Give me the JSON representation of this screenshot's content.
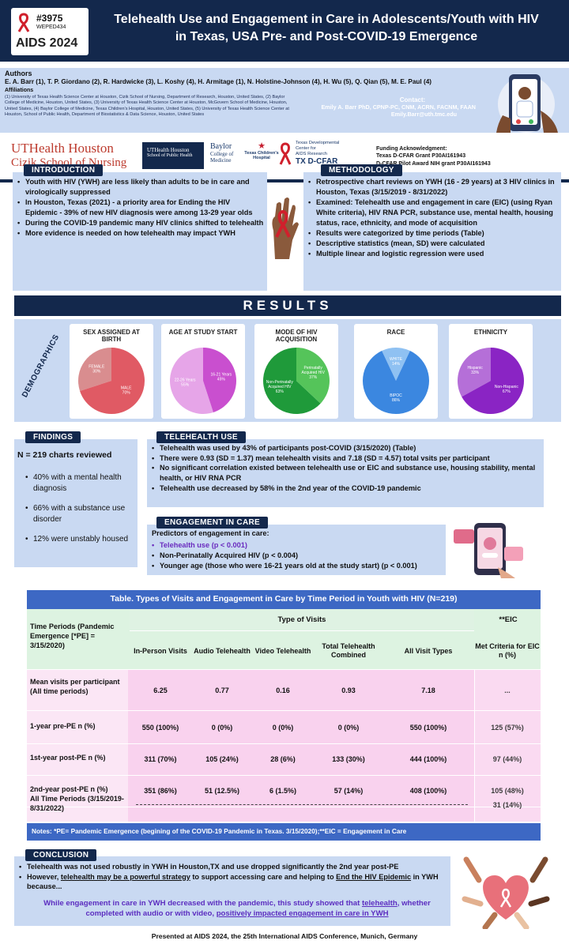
{
  "header": {
    "poster_id": "#3975",
    "poster_code": "WEPED434",
    "conference_logo": "AIDS 2024",
    "title_line1": "Telehealth Use and Engagement in Care in Adolescents/Youth with HIV",
    "title_line2": "in Texas, USA Pre- and Post-COVID-19 Emergence"
  },
  "authors": {
    "heading": "Authors",
    "names": "E. A. Barr (1), T. P. Giordano (2), R. Hardwicke (3), L. Koshy (4), H. Armitage (1), N. Holstine-Johnson (4), H. Wu (5), Q. Qian (5), M. E. Paul (4)",
    "affil_heading": "Affiliations",
    "affiliations": "(1) University of Texas Health Science Center at Houston, Cizik School of Nursing, Department of Research, Houston, United States, (2) Baylor College of Medicine, Houston, United States, (3) University of Texas Health Science Center at Houston, McGovern School of Medicine, Houston, United States, (4) Baylor College of Medicine, Texas Children's Hospital, Houston, United States, (5) University of Texas Health Science Center at Houston, School of Public Health, Department of Biostatistics & Data Science, Houston, United States"
  },
  "contact": {
    "label": "Contact:",
    "name": "Emily A. Barr PhD, CPNP-PC, CNM, ACRN, FACNM, FAAN",
    "email": "Emily.Barr@uth.tmc.edu"
  },
  "logos": {
    "uth_line1": "UTHealth Houston",
    "uth_line2": "Cizik School of Nursing",
    "sph_line1": "UTHealth Houston",
    "sph_line2": "School of Public Health",
    "baylor_line1": "Baylor",
    "baylor_line2": "College of",
    "baylor_line3": "Medicine",
    "tch_line1": "Texas Children's",
    "tch_line2": "Hospital",
    "dcfar_line1": "Texas Developmental",
    "dcfar_line2": "Center for",
    "dcfar_line3": "AIDS Research",
    "dcfar_line4": "TX D-CFAR"
  },
  "funding": {
    "label": "Funding Acknowledgment:",
    "line1": "Texas D-CFAR Grant P30AI161943",
    "line2": "D-CFAR Pilot Award NIH grant P30AI161943"
  },
  "introduction": {
    "label": "INTRODUCTION",
    "bullets": [
      "Youth with HIV (YWH) are less likely than adults to be in care and virologically suppressed",
      "In Houston, Texas (2021) - a priority area for Ending the HIV Epidemic - 39% of new HIV diagnosis were among 13-29 year olds",
      "During the COVID-19 pandemic many HIV clinics shifted to telehealth",
      "More evidence is needed on how telehealth may impact YWH"
    ]
  },
  "methodology": {
    "label": "METHODOLOGY",
    "bullets": [
      "Retrospective chart reviews on YWH (16 - 29 years) at 3 HIV clinics in Houston, Texas (3/15/2019 - 8/31/2022)",
      "Examined: Telehealth use and engagement in care (EIC) (using Ryan White criteria), HIV RNA PCR, substance use, mental health, housing status, race, ethnicity, and mode of acquisition",
      "Results were categorized by time periods (Table)",
      "Descriptive statistics (mean, SD) were calculated",
      "Multiple linear and logistic regression were used"
    ]
  },
  "results_title": "RESULTS",
  "demographics_label": "DEMOGRAPHICS",
  "chart_data": [
    {
      "type": "pie",
      "title": "SEX ASSIGNED AT BIRTH",
      "labels": [
        "FEMALE",
        "MALE"
      ],
      "values": [
        30,
        70
      ],
      "label_text": [
        "30%",
        "70%"
      ],
      "colors": [
        "#d98d8f",
        "#e05a64"
      ]
    },
    {
      "type": "pie",
      "title": "AGE AT STUDY START",
      "labels": [
        "22-26 Years",
        "16-21 Years"
      ],
      "values": [
        55,
        45
      ],
      "label_text": [
        "55%",
        "45%"
      ],
      "colors": [
        "#e6a5e8",
        "#c94fcf"
      ]
    },
    {
      "type": "pie",
      "title": "MODE OF HIV ACQUISITION",
      "labels": [
        "Non-Perinatally Acquired HIV",
        "Perinatally Acquired HIV"
      ],
      "values": [
        63,
        37
      ],
      "label_text": [
        "63%",
        "37%"
      ],
      "colors": [
        "#1f9a3a",
        "#55c45a"
      ]
    },
    {
      "type": "pie",
      "title": "RACE",
      "labels": [
        "WHITE",
        "BIPOC"
      ],
      "values": [
        14,
        86
      ],
      "label_text": [
        "14%",
        "86%"
      ],
      "colors": [
        "#8fc1f2",
        "#3b87e0"
      ]
    },
    {
      "type": "pie",
      "title": "ETHNICITY",
      "labels": [
        "Hispanic",
        "Non-Hispanic"
      ],
      "values": [
        33,
        67
      ],
      "label_text": [
        "33%",
        "67%"
      ],
      "colors": [
        "#b56fd8",
        "#8a24c4"
      ]
    }
  ],
  "findings": {
    "label": "FINDINGS",
    "n": "N = 219 charts reviewed",
    "bullets": [
      "40% with a mental health diagnosis",
      "66% with a substance use disorder",
      "12% were unstably housed"
    ]
  },
  "telehealth_use": {
    "label": "TELEHEALTH USE",
    "bullets": [
      "Telehealth was used by 43% of participants post-COVID (3/15/2020) (Table)",
      "There were 0.93 (SD = 1.37) mean telehealth visits and 7.18 (SD = 4.57) total vsits per participant",
      "No significant correlation existed between telehealth use or EIC and substance use, housing stability, mental health, or HIV RNA PCR",
      "Telehealth use decreased by 58% in the 2nd year of the COVID-19 pandemic"
    ]
  },
  "engagement": {
    "label": "ENGAGEMENT IN CARE",
    "intro": "Predictors of engagement in care:",
    "bullets": [
      "Telehealth use (p < 0.001)",
      "Non-Perinatally Acquired HIV (p < 0.004)",
      "Younger age (those who were 16-21 years old at the study start) (p < 0.001)"
    ]
  },
  "table": {
    "title": "Table. Types of Visits and Engagement in Care by Time Period in Youth with HIV (N=219)",
    "type_of_visits": "Type of Visits",
    "eic_head": "**EIC",
    "row_head": "Time Periods (Pandemic Emergence [*PE] = 3/15/2020)",
    "columns": [
      "In-Person Visits",
      "Audio Telehealth",
      "Video Telehealth",
      "Total Telehealth Combined",
      "All Visit Types",
      "Met Criteria for EIC n (%)"
    ],
    "rows": [
      {
        "label": "Mean visits per participant (All time periods)",
        "cells": [
          "6.25",
          "0.77",
          "0.16",
          "0.93",
          "7.18",
          "..."
        ]
      },
      {
        "label": "1-year pre-PE n (%)",
        "cells": [
          "550 (100%)",
          "0 (0%)",
          "0 (0%)",
          "0 (0%)",
          "550 (100%)",
          "125 (57%)"
        ]
      },
      {
        "label": "1st-year post-PE n (%)",
        "cells": [
          "311 (70%)",
          "105 (24%)",
          "28 (6%)",
          "133 (30%)",
          "444 (100%)",
          "97 (44%)"
        ]
      },
      {
        "label": "2nd-year post-PE n (%)",
        "cells": [
          "351 (86%)",
          "51 (12.5%)",
          "6 (1.5%)",
          "57 (14%)",
          "408 (100%)",
          "105 (48%)"
        ]
      }
    ],
    "all_label": "All Time Periods (3/15/2019-8/31/2022)",
    "all_value": "31 (14%)",
    "notes": "Notes: *PE= Pandemic Emergence (begining of the COVID-19 Pandemic in Texas. 3/15/2020);**EIC = Engagement in Care"
  },
  "conclusion": {
    "label": "CONCLUSION",
    "bullet1": "Telehealth was not used robustly in YWH in Houston,TX and use dropped significantly the 2nd year post-PE",
    "b2_a": "However, ",
    "b2_u1": "telehealth may be a powerful strategy",
    "b2_b": " to support accessing care and helping to ",
    "b2_u2": "End the HIV Epidemic",
    "b2_c": " in YWH because...",
    "purple_a": "While engagement in care in YWH decreased with the pandemic, this study showed that ",
    "purple_u1": "telehealth",
    "purple_b": ", whether completed with audio or with video, ",
    "purple_u2": "positively impacted engagement in care in YWH"
  },
  "footer": "Presented at AIDS 2024, the 25th International AIDS Conference, Munich, Germany"
}
